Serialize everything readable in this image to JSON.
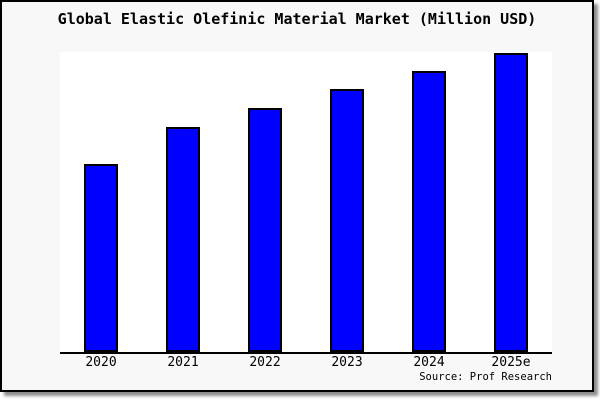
{
  "chart_data": {
    "type": "bar",
    "title": "Global Elastic Olefinic Material Market (Million USD)",
    "categories": [
      "2020",
      "2021",
      "2022",
      "2023",
      "2024",
      "2025e"
    ],
    "values": [
      188,
      225,
      244,
      263,
      281,
      299
    ],
    "ylim": [
      0,
      300
    ],
    "xlabel": "",
    "ylabel": "",
    "grid": false,
    "legend": false,
    "note": "y-axis has no tick labels; values are relative bar heights (plot full height = 300)",
    "bar_color": "#0000fe",
    "bar_border_color": "#000000"
  },
  "source": {
    "label": "Source: Prof Research"
  },
  "colors": {
    "card_background": "#f8f8f8",
    "plot_background": "#ffffff",
    "border": "#000000"
  }
}
